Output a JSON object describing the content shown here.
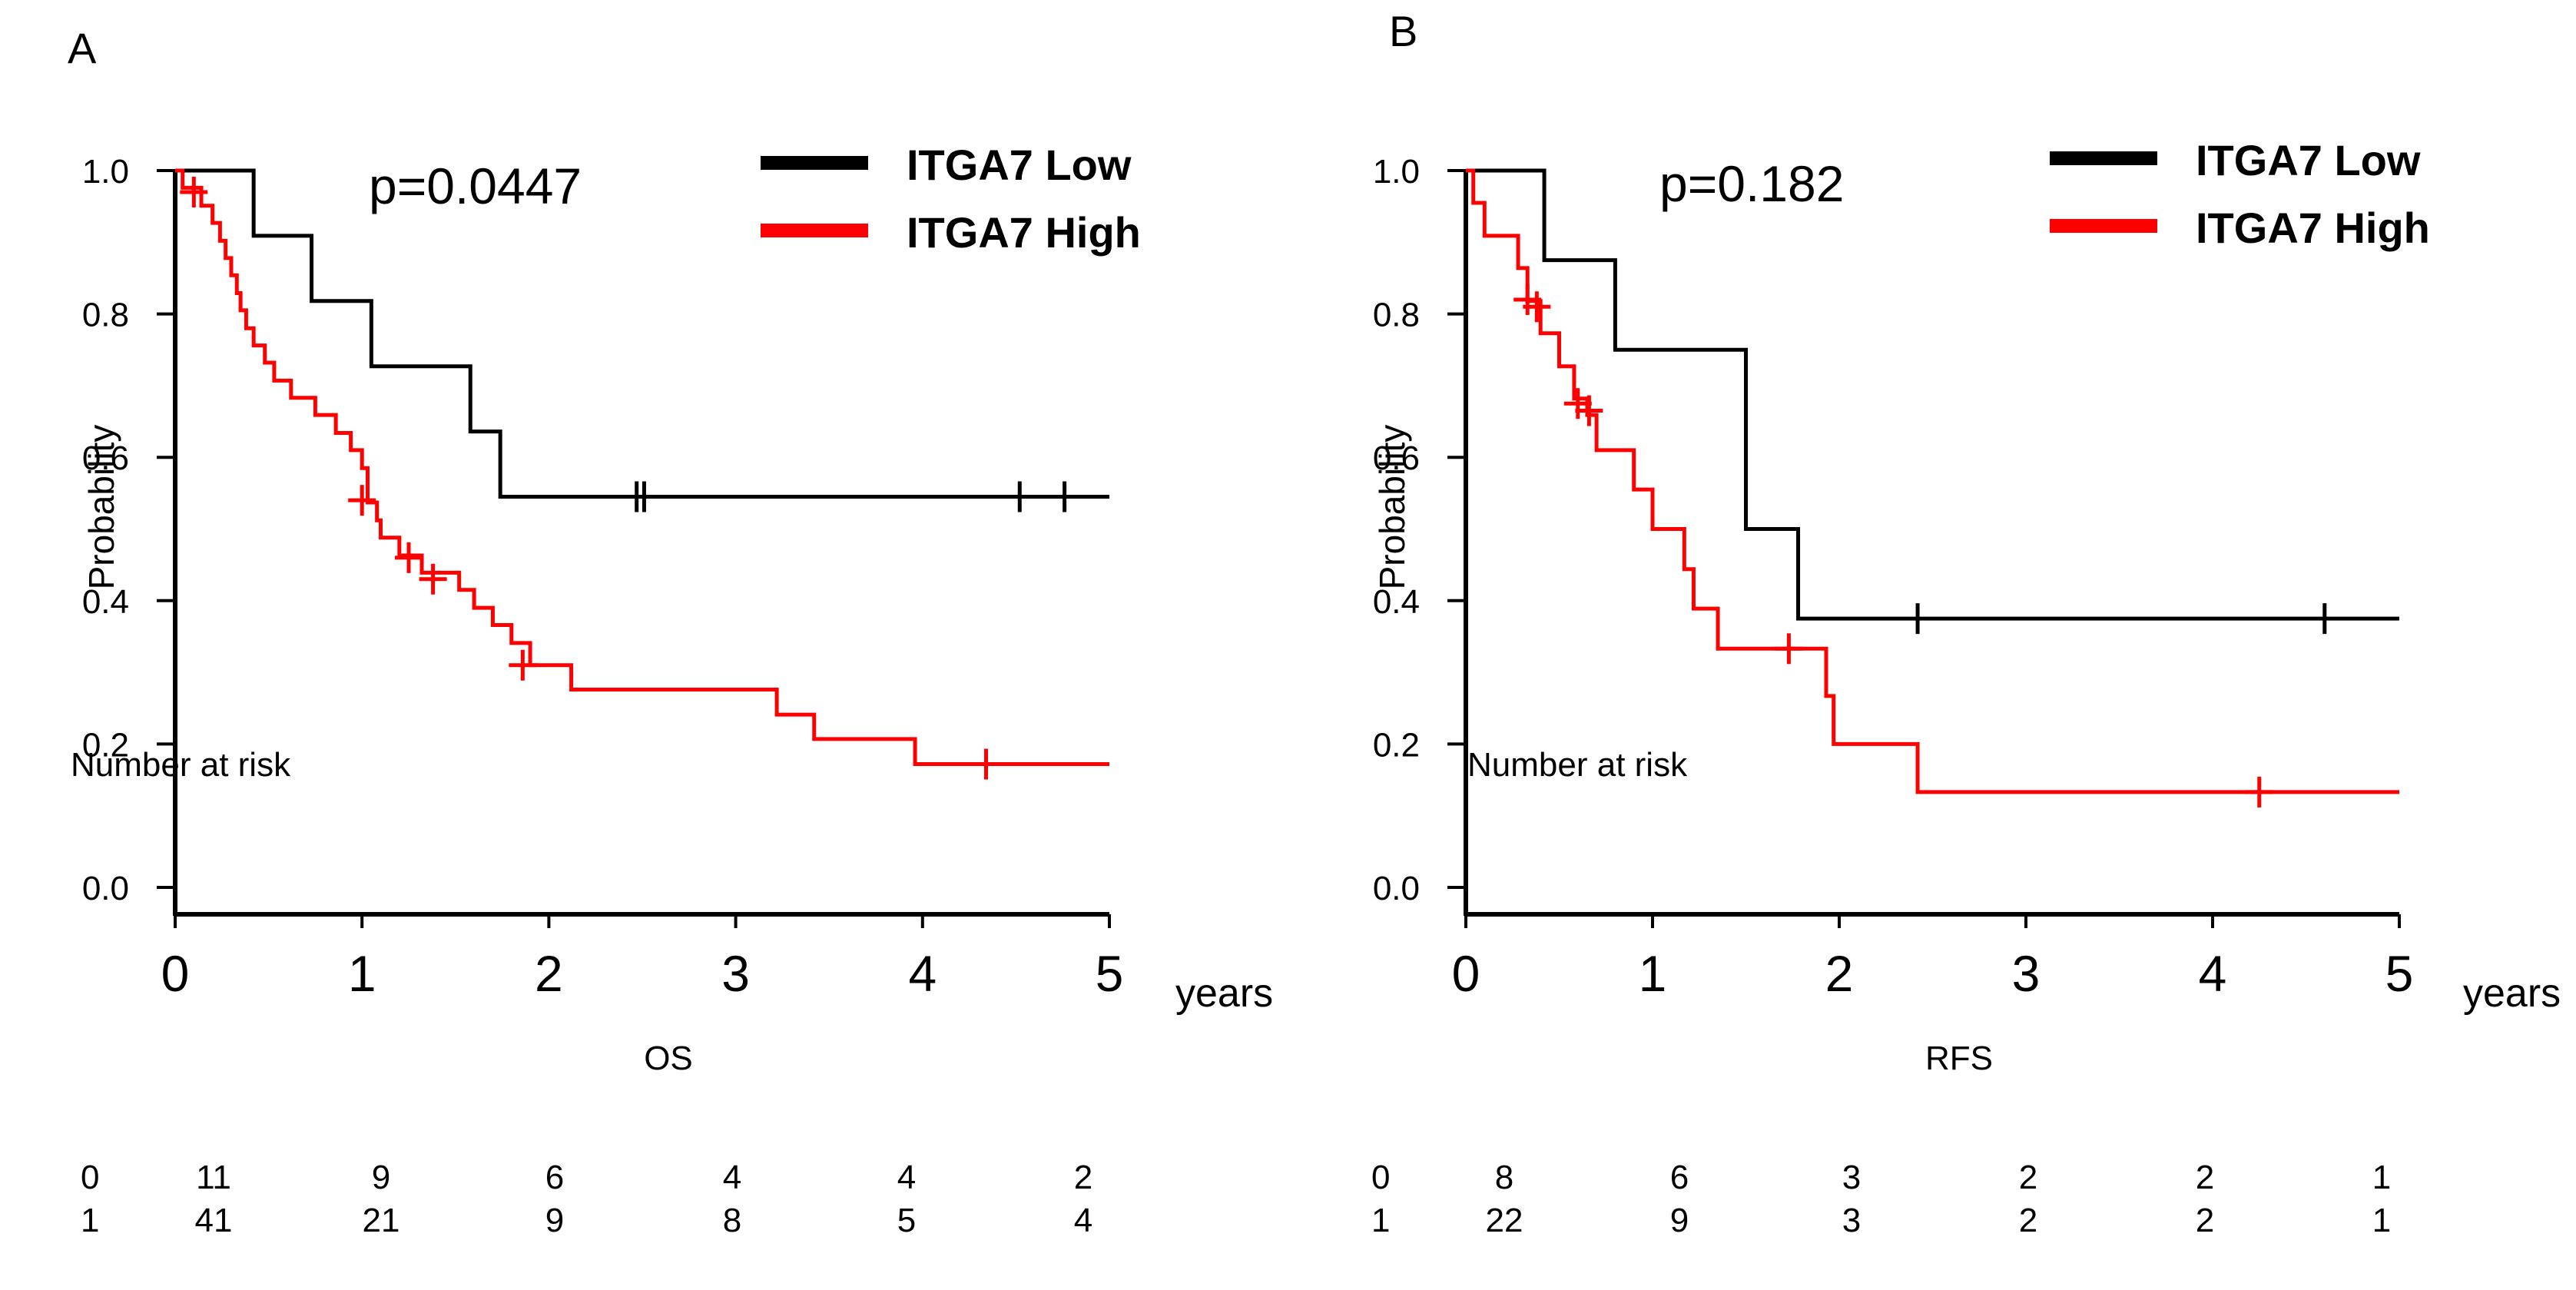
{
  "figure": {
    "background": "#ffffff",
    "low_color": "#000000",
    "high_color": "#ff0000"
  },
  "chart_data": [
    {
      "type": "line",
      "subtype": "kaplan-meier",
      "panel_label": "A",
      "pvalue_text": "p=0.0447",
      "xlabel": "OS",
      "x_unit": "years",
      "ylabel": "Probability",
      "xlim": [
        0,
        5
      ],
      "ylim": [
        0,
        1
      ],
      "x_ticks": [
        "0",
        "1",
        "2",
        "3",
        "4",
        "5"
      ],
      "y_ticks": [
        "0.0",
        "0.2",
        "0.4",
        "0.6",
        "0.8",
        "1.0"
      ],
      "legend_position": "top-right",
      "series": [
        {
          "name": "ITGA7 Low",
          "color": "#000000",
          "steps": [
            [
              0,
              1.0
            ],
            [
              0.42,
              0.909
            ],
            [
              0.73,
              0.818
            ],
            [
              1.05,
              0.727
            ],
            [
              1.58,
              0.636
            ],
            [
              1.74,
              0.545
            ],
            [
              5.0,
              0.545
            ]
          ],
          "censors": [
            [
              2.47,
              0.545
            ],
            [
              2.51,
              0.545
            ],
            [
              4.52,
              0.545
            ],
            [
              4.76,
              0.545
            ]
          ]
        },
        {
          "name": "ITGA7 High",
          "color": "#ff0000",
          "steps": [
            [
              0,
              1.0
            ],
            [
              0.04,
              0.976
            ],
            [
              0.14,
              0.951
            ],
            [
              0.2,
              0.927
            ],
            [
              0.24,
              0.902
            ],
            [
              0.27,
              0.878
            ],
            [
              0.3,
              0.854
            ],
            [
              0.33,
              0.829
            ],
            [
              0.35,
              0.805
            ],
            [
              0.38,
              0.78
            ],
            [
              0.42,
              0.756
            ],
            [
              0.48,
              0.732
            ],
            [
              0.53,
              0.707
            ],
            [
              0.62,
              0.683
            ],
            [
              0.75,
              0.659
            ],
            [
              0.86,
              0.634
            ],
            [
              0.94,
              0.61
            ],
            [
              1.0,
              0.585
            ],
            [
              1.03,
              0.537
            ],
            [
              1.08,
              0.512
            ],
            [
              1.1,
              0.488
            ],
            [
              1.2,
              0.463
            ],
            [
              1.32,
              0.439
            ],
            [
              1.52,
              0.415
            ],
            [
              1.6,
              0.39
            ],
            [
              1.7,
              0.366
            ],
            [
              1.8,
              0.341
            ],
            [
              1.9,
              0.31
            ],
            [
              2.12,
              0.276
            ],
            [
              3.22,
              0.241
            ],
            [
              3.42,
              0.207
            ],
            [
              3.96,
              0.172
            ],
            [
              5.0,
              0.172
            ]
          ],
          "censors": [
            [
              0.1,
              0.97
            ],
            [
              1.0,
              0.54
            ],
            [
              1.25,
              0.46
            ],
            [
              1.38,
              0.43
            ],
            [
              1.86,
              0.31
            ],
            [
              4.34,
              0.172
            ]
          ]
        }
      ],
      "risk_table": {
        "header": "Number at risk",
        "rows": [
          {
            "group": "0",
            "counts": [
              "11",
              "9",
              "6",
              "4",
              "4",
              "2"
            ]
          },
          {
            "group": "1",
            "counts": [
              "41",
              "21",
              "9",
              "8",
              "5",
              "4"
            ]
          }
        ]
      }
    },
    {
      "type": "line",
      "subtype": "kaplan-meier",
      "panel_label": "B",
      "pvalue_text": "p=0.182",
      "xlabel": "RFS",
      "x_unit": "years",
      "ylabel": "Probability",
      "xlim": [
        0,
        5
      ],
      "ylim": [
        0,
        1
      ],
      "x_ticks": [
        "0",
        "1",
        "2",
        "3",
        "4",
        "5"
      ],
      "y_ticks": [
        "0.0",
        "0.2",
        "0.4",
        "0.6",
        "0.8",
        "1.0"
      ],
      "legend_position": "top-right",
      "series": [
        {
          "name": "ITGA7 Low",
          "color": "#000000",
          "steps": [
            [
              0,
              1.0
            ],
            [
              0.42,
              0.875
            ],
            [
              0.8,
              0.75
            ],
            [
              1.5,
              0.5
            ],
            [
              1.78,
              0.375
            ],
            [
              5.0,
              0.375
            ]
          ],
          "censors": [
            [
              2.42,
              0.375
            ],
            [
              4.6,
              0.375
            ]
          ]
        },
        {
          "name": "ITGA7 High",
          "color": "#ff0000",
          "steps": [
            [
              0,
              1.0
            ],
            [
              0.04,
              0.955
            ],
            [
              0.1,
              0.909
            ],
            [
              0.28,
              0.864
            ],
            [
              0.33,
              0.818
            ],
            [
              0.4,
              0.773
            ],
            [
              0.5,
              0.727
            ],
            [
              0.58,
              0.682
            ],
            [
              0.65,
              0.659
            ],
            [
              0.7,
              0.61
            ],
            [
              0.9,
              0.555
            ],
            [
              1.0,
              0.5
            ],
            [
              1.17,
              0.444
            ],
            [
              1.22,
              0.389
            ],
            [
              1.35,
              0.333
            ],
            [
              1.93,
              0.267
            ],
            [
              1.97,
              0.2
            ],
            [
              2.42,
              0.133
            ],
            [
              5.0,
              0.133
            ]
          ],
          "censors": [
            [
              0.33,
              0.82
            ],
            [
              0.38,
              0.81
            ],
            [
              0.6,
              0.675
            ],
            [
              0.66,
              0.665
            ],
            [
              1.73,
              0.333
            ],
            [
              4.25,
              0.133
            ]
          ]
        }
      ],
      "risk_table": {
        "header": "Number at risk",
        "rows": [
          {
            "group": "0",
            "counts": [
              "8",
              "6",
              "3",
              "2",
              "2",
              "1"
            ]
          },
          {
            "group": "1",
            "counts": [
              "22",
              "9",
              "3",
              "2",
              "2",
              "1"
            ]
          }
        ]
      }
    }
  ]
}
